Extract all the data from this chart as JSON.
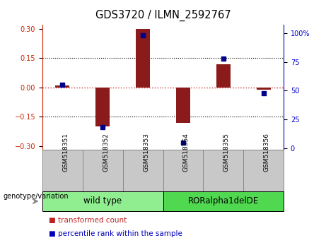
{
  "title": "GDS3720 / ILMN_2592767",
  "samples": [
    "GSM518351",
    "GSM518352",
    "GSM518353",
    "GSM518354",
    "GSM518355",
    "GSM518356"
  ],
  "bar_values": [
    0.01,
    -0.2,
    0.3,
    -0.18,
    0.12,
    -0.01
  ],
  "dot_values": [
    55,
    18,
    98,
    5,
    78,
    48
  ],
  "groups": [
    {
      "label": "wild type",
      "indices": [
        0,
        1,
        2
      ],
      "color": "#90EE90"
    },
    {
      "label": "RORalpha1delDE",
      "indices": [
        3,
        4,
        5
      ],
      "color": "#50D850"
    }
  ],
  "bar_color": "#8B1A1A",
  "dot_color": "#00008B",
  "ylim_left": [
    -0.32,
    0.32
  ],
  "ylim_right": [
    -1.6,
    107
  ],
  "yticks_left": [
    -0.3,
    -0.15,
    0.0,
    0.15,
    0.3
  ],
  "yticks_right": [
    0,
    25,
    50,
    75,
    100
  ],
  "ytick_labels_right": [
    "0",
    "25",
    "50",
    "75",
    "100%"
  ],
  "hline_color": "#CC3333",
  "dotted_hlines": [
    -0.15,
    0.15
  ],
  "bar_width": 0.35,
  "dot_size": 18,
  "legend_items": [
    {
      "label": "transformed count",
      "color": "#BB2222"
    },
    {
      "label": "percentile rank within the sample",
      "color": "#0000BB"
    }
  ],
  "genotype_label": "genotype/variation",
  "group_label_fontsize": 8.5,
  "tick_label_fontsize": 7,
  "title_fontsize": 10.5,
  "sample_label_fontsize": 6.5,
  "legend_fontsize": 7.5,
  "axis_color_left": "#CC2200",
  "axis_color_right": "#0000CC",
  "header_bg_color": "#C8C8C8",
  "header_border_color": "#888888",
  "background_color": "#ffffff"
}
